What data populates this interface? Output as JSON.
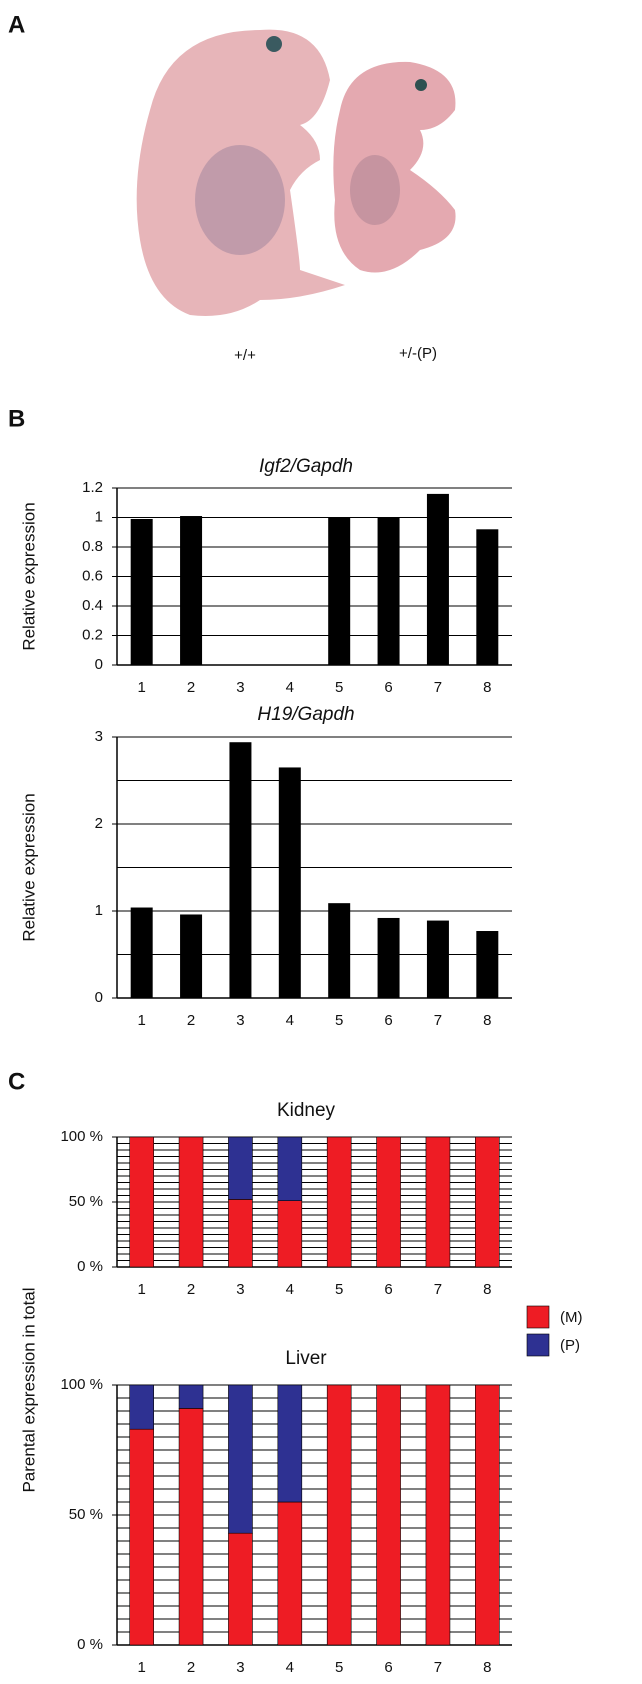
{
  "panels": [
    "A",
    "B",
    "C"
  ],
  "photo_labels": [
    "+/+",
    "+/-(P)"
  ],
  "chart_data": [
    {
      "type": "bar",
      "title": "Igf2/Gapdh",
      "ylabel": "Relative expression",
      "categories": [
        "1",
        "2",
        "3",
        "4",
        "5",
        "6",
        "7",
        "8"
      ],
      "values": [
        0.99,
        1.01,
        0,
        0,
        1.0,
        1.0,
        1.16,
        0.92
      ],
      "color": "#000000",
      "ylim": [
        0,
        1.2
      ],
      "yticks": [
        0,
        0.2,
        0.4,
        0.6,
        0.8,
        1,
        1.2
      ],
      "grid_step": 0.2
    },
    {
      "type": "bar",
      "title": "H19/Gapdh",
      "ylabel": "Relative expression",
      "categories": [
        "1",
        "2",
        "3",
        "4",
        "5",
        "6",
        "7",
        "8"
      ],
      "values": [
        1.04,
        0.96,
        2.94,
        2.65,
        1.09,
        0.92,
        0.89,
        0.77
      ],
      "color": "#000000",
      "ylim": [
        0,
        3
      ],
      "yticks": [
        0,
        1,
        2,
        3
      ],
      "grid_step": 0.5
    },
    {
      "type": "stacked_bar",
      "ylabel": "Parental expression in total",
      "categories": [
        "1",
        "2",
        "3",
        "4",
        "5",
        "6",
        "7",
        "8"
      ],
      "series": [
        {
          "name": "(M)",
          "color": "#ee1c24"
        },
        {
          "name": "(P)",
          "color": "#2e3192"
        }
      ],
      "ylim": [
        0,
        100
      ],
      "yticks": [
        {
          "value": 0,
          "label": "0 %"
        },
        {
          "value": 50,
          "label": "50 %"
        },
        {
          "value": 100,
          "label": "100 %"
        }
      ],
      "grid_step": 5,
      "subplots": [
        {
          "title": "Kidney",
          "values": [
            [
              100,
              100,
              52,
              51,
              100,
              100,
              100,
              100
            ],
            [
              0,
              0,
              48,
              49,
              0,
              0,
              0,
              0
            ]
          ]
        },
        {
          "title": "Liver",
          "values": [
            [
              83,
              91,
              43,
              55,
              100,
              100,
              100,
              100
            ],
            [
              17,
              9,
              57,
              45,
              0,
              0,
              0,
              0
            ]
          ]
        }
      ]
    }
  ]
}
